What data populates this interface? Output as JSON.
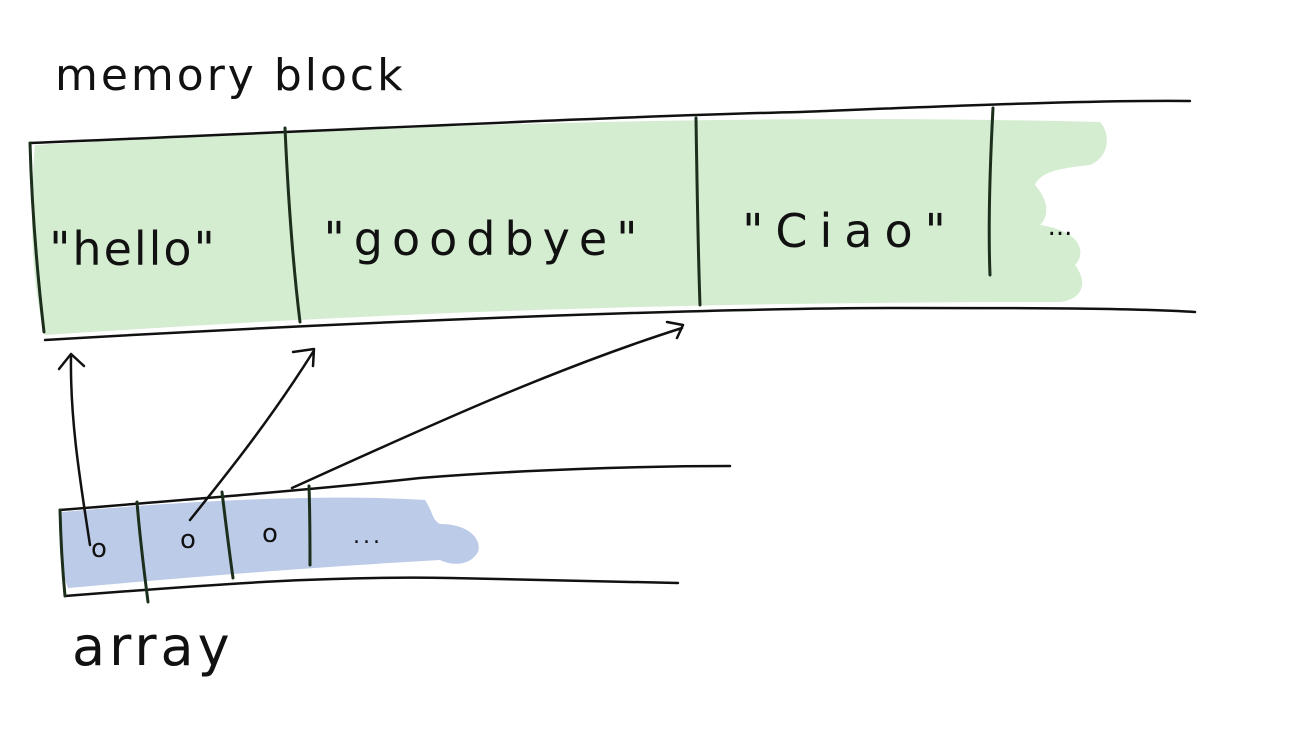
{
  "memory_block": {
    "label": "memory block",
    "fill_color": "#d4ecd0",
    "cells": [
      {
        "text": "\"hello\""
      },
      {
        "text": "\"goodbye\""
      },
      {
        "text": "\"Ciao\""
      },
      {
        "text": "..."
      }
    ]
  },
  "array": {
    "label": "array",
    "fill_color": "#bccbe8",
    "cells": [
      {
        "text": "o"
      },
      {
        "text": "o"
      },
      {
        "text": "o"
      },
      {
        "text": "..."
      }
    ]
  },
  "pointers": [
    {
      "from": "array cell 1",
      "to": "hello"
    },
    {
      "from": "array cell 2",
      "to": "goodbye"
    },
    {
      "from": "array cell 3",
      "to": "Ciao"
    }
  ]
}
